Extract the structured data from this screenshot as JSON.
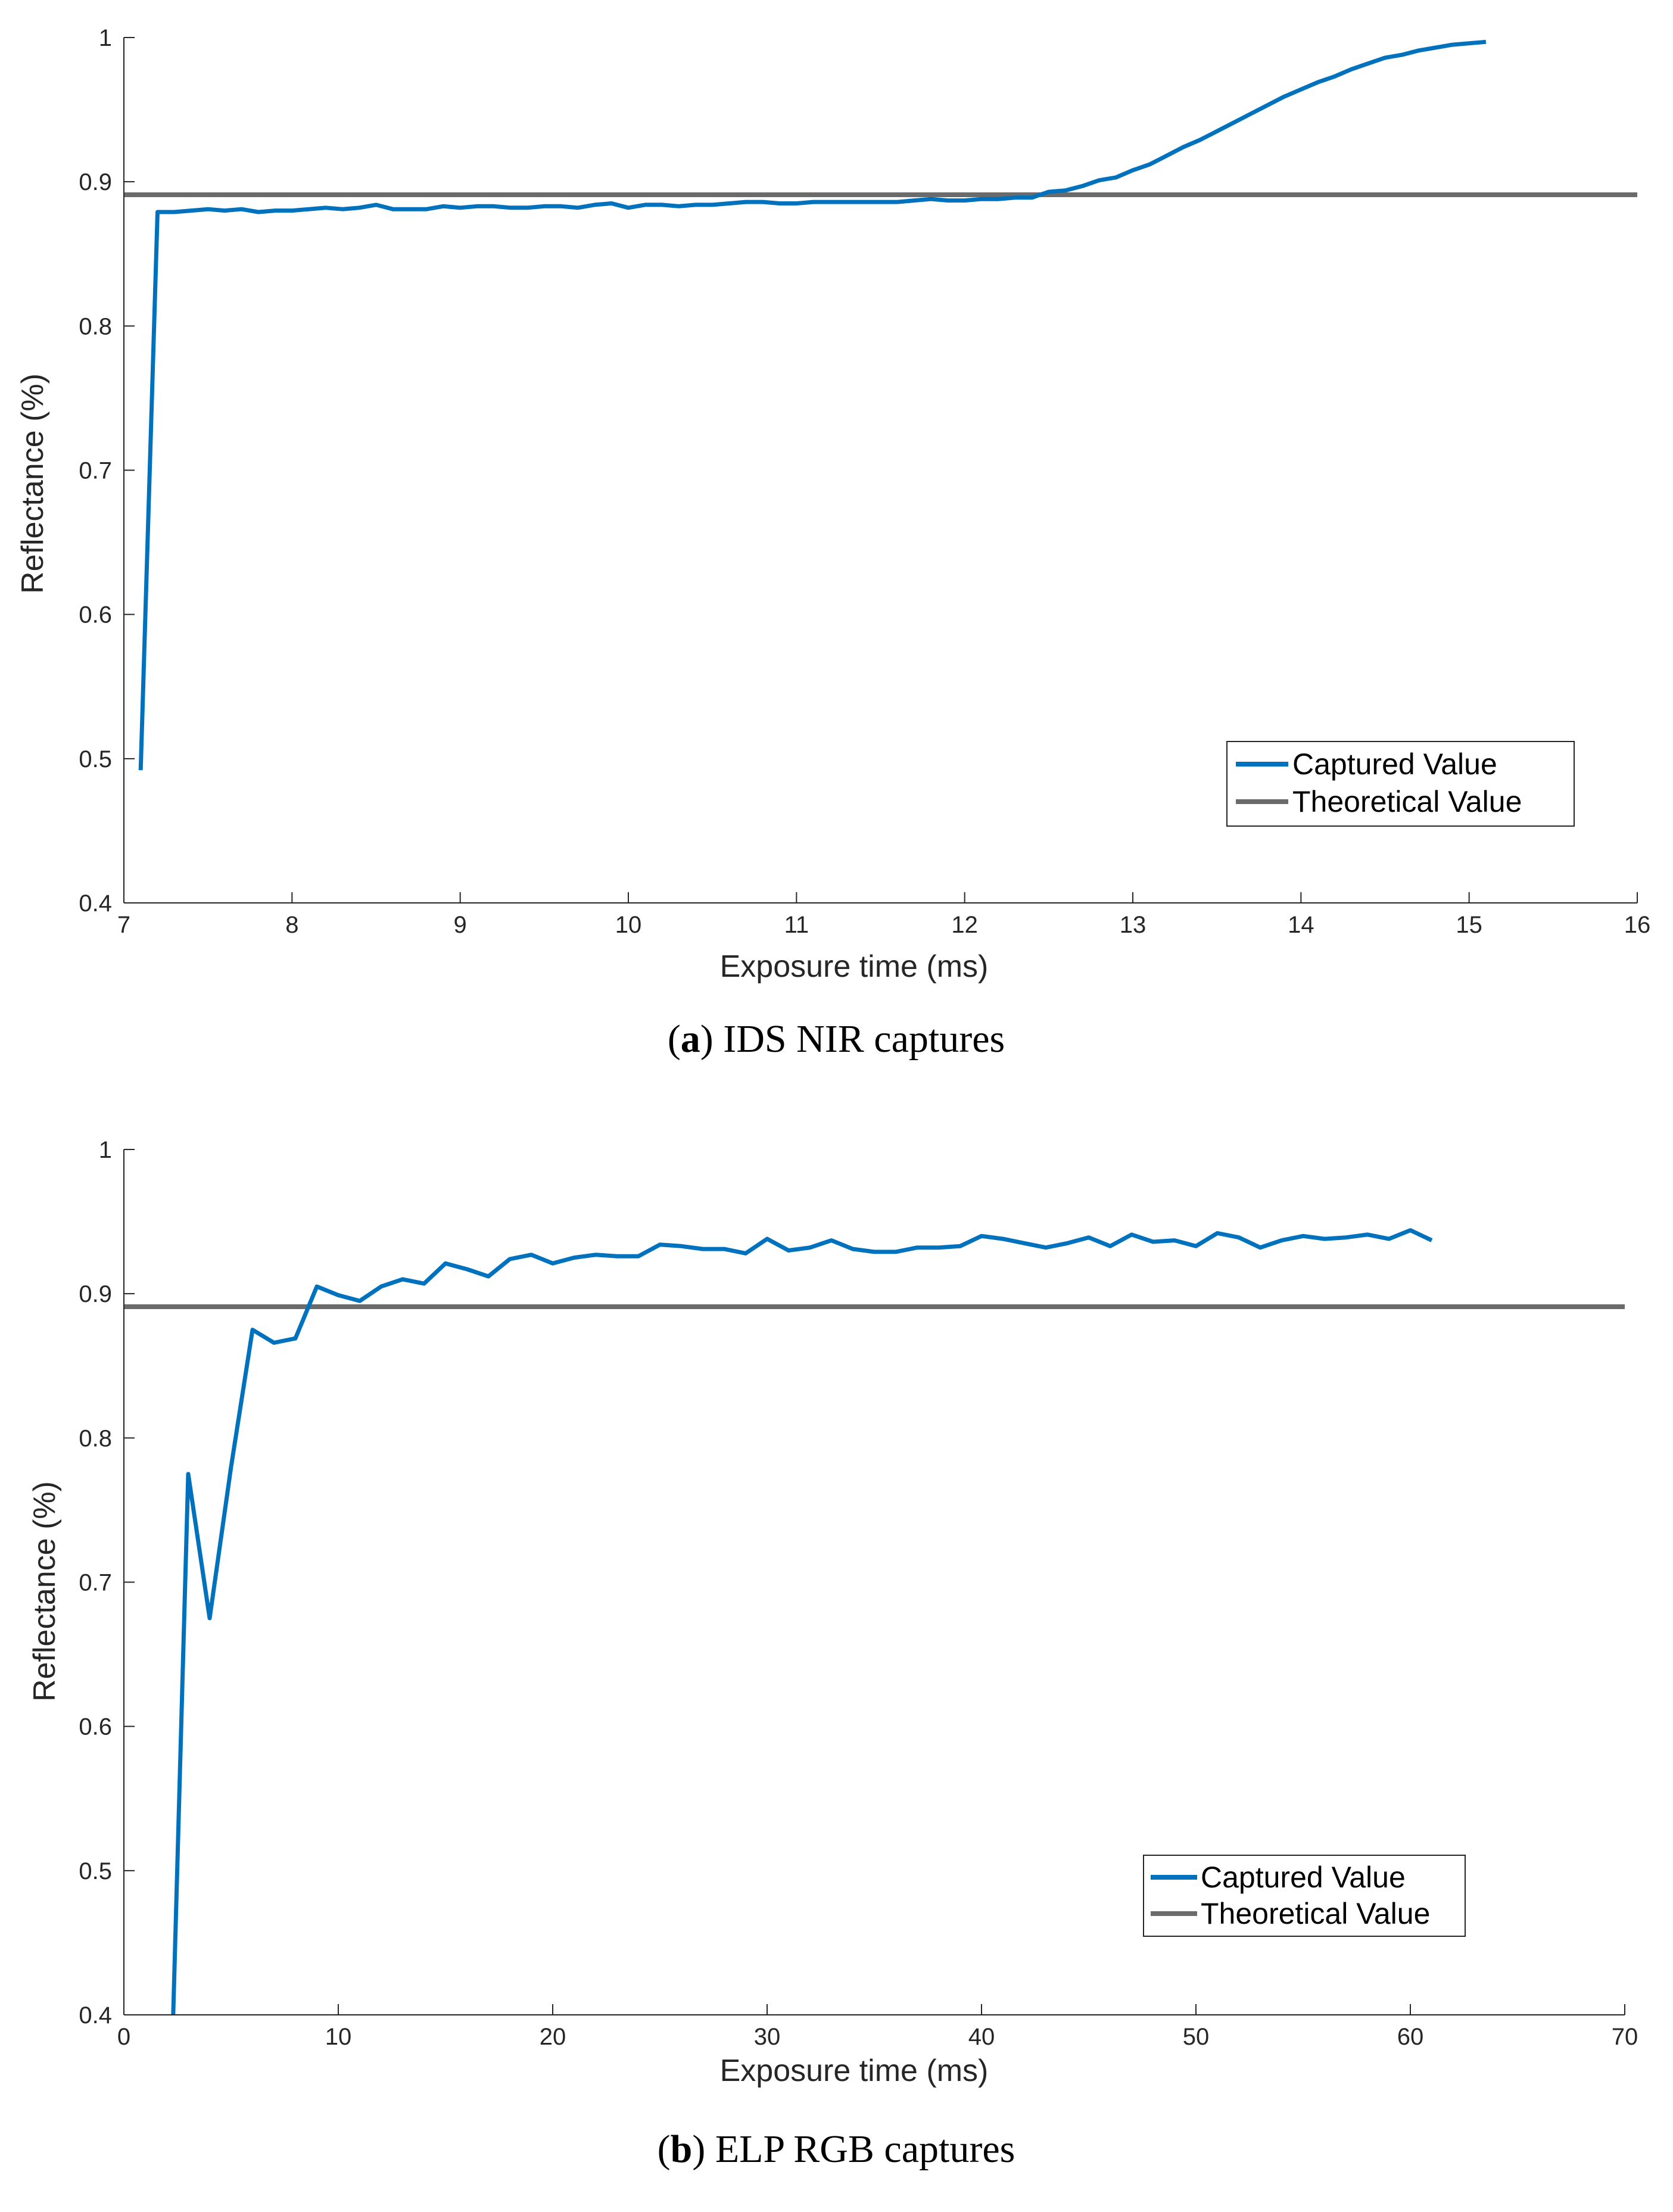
{
  "colors": {
    "captured": "#0072BD",
    "theoretical": "#6b6b6b",
    "axis": "#262626"
  },
  "chart_data": [
    {
      "type": "line",
      "caption_letter": "a",
      "caption_rest": ") IDS NIR captures",
      "xlabel": "Exposure time (ms)",
      "ylabel": "Reflectance (%)",
      "xlim": [
        7,
        16
      ],
      "ylim": [
        0.4,
        1
      ],
      "xticks": [
        7,
        8,
        9,
        10,
        11,
        12,
        13,
        14,
        15,
        16
      ],
      "yticks": [
        0.4,
        0.5,
        0.6,
        0.7,
        0.8,
        0.9,
        1
      ],
      "ytick_labels": [
        "0.4",
        "0.5",
        "0.6",
        "0.7",
        "0.8",
        "0.9",
        "1"
      ],
      "legend_position": "bottom-right",
      "series": [
        {
          "name": "Captured Value",
          "x": [
            7.1,
            7.2,
            7.3,
            7.4,
            7.5,
            7.6,
            7.7,
            7.8,
            7.9,
            8.0,
            8.1,
            8.2,
            8.3,
            8.4,
            8.5,
            8.6,
            8.7,
            8.8,
            8.9,
            9.0,
            9.1,
            9.2,
            9.3,
            9.4,
            9.5,
            9.6,
            9.7,
            9.8,
            9.9,
            10.0,
            10.1,
            10.2,
            10.3,
            10.4,
            10.5,
            10.6,
            10.7,
            10.8,
            10.9,
            11.0,
            11.1,
            11.2,
            11.3,
            11.4,
            11.5,
            11.6,
            11.7,
            11.8,
            11.9,
            12.0,
            12.1,
            12.2,
            12.3,
            12.4,
            12.5,
            12.6,
            12.7,
            12.8,
            12.9,
            13.0,
            13.1,
            13.2,
            13.3,
            13.4,
            13.5,
            13.6,
            13.7,
            13.8,
            13.9,
            14.0,
            14.1,
            14.2,
            14.3,
            14.4,
            14.5,
            14.6,
            14.7,
            14.8,
            14.9,
            15.0,
            15.1
          ],
          "y": [
            0.492,
            0.879,
            0.879,
            0.88,
            0.881,
            0.88,
            0.881,
            0.879,
            0.88,
            0.88,
            0.881,
            0.882,
            0.881,
            0.882,
            0.884,
            0.881,
            0.881,
            0.881,
            0.883,
            0.882,
            0.883,
            0.883,
            0.882,
            0.882,
            0.883,
            0.883,
            0.882,
            0.884,
            0.885,
            0.882,
            0.884,
            0.884,
            0.883,
            0.884,
            0.884,
            0.885,
            0.886,
            0.886,
            0.885,
            0.885,
            0.886,
            0.886,
            0.886,
            0.886,
            0.886,
            0.886,
            0.887,
            0.888,
            0.887,
            0.887,
            0.888,
            0.888,
            0.889,
            0.889,
            0.893,
            0.894,
            0.897,
            0.901,
            0.903,
            0.908,
            0.912,
            0.918,
            0.924,
            0.929,
            0.935,
            0.941,
            0.947,
            0.953,
            0.959,
            0.964,
            0.969,
            0.973,
            0.978,
            0.982,
            0.986,
            0.988,
            0.991,
            0.993,
            0.995,
            0.996,
            0.997
          ],
          "color": "#0072BD"
        },
        {
          "name": "Theoretical Value",
          "x": [
            7,
            16
          ],
          "y": [
            0.891,
            0.891
          ],
          "color": "#6b6b6b"
        }
      ]
    },
    {
      "type": "line",
      "caption_letter": "b",
      "caption_rest": ") ELP RGB captures",
      "xlabel": "Exposure time (ms)",
      "ylabel": "Reflectance (%)",
      "xlim": [
        0,
        70
      ],
      "ylim": [
        0.4,
        1
      ],
      "xticks": [
        0,
        10,
        20,
        30,
        40,
        50,
        60,
        70
      ],
      "yticks": [
        0.4,
        0.5,
        0.6,
        0.7,
        0.8,
        0.9,
        1
      ],
      "ytick_labels": [
        "0.4",
        "0.5",
        "0.6",
        "0.7",
        "0.8",
        "0.9",
        "1"
      ],
      "legend_position": "bottom-right",
      "series": [
        {
          "name": "Captured Value",
          "x": [
            2.3,
            3,
            4,
            5,
            6,
            7,
            8,
            9,
            10,
            11,
            12,
            13,
            14,
            15,
            16,
            17,
            18,
            19,
            20,
            21,
            22,
            23,
            24,
            25,
            26,
            27,
            28,
            29,
            30,
            31,
            32,
            33,
            34,
            35,
            36,
            37,
            38,
            39,
            40,
            41,
            42,
            43,
            44,
            45,
            46,
            47,
            48,
            49,
            50,
            51,
            52,
            53,
            54,
            55,
            56,
            57,
            58,
            59,
            60,
            61
          ],
          "y": [
            0.4,
            0.775,
            0.675,
            0.78,
            0.875,
            0.866,
            0.869,
            0.905,
            0.899,
            0.895,
            0.905,
            0.91,
            0.907,
            0.921,
            0.917,
            0.912,
            0.924,
            0.927,
            0.921,
            0.925,
            0.927,
            0.926,
            0.926,
            0.934,
            0.933,
            0.931,
            0.931,
            0.928,
            0.938,
            0.93,
            0.932,
            0.937,
            0.931,
            0.929,
            0.929,
            0.932,
            0.932,
            0.933,
            0.94,
            0.938,
            0.935,
            0.932,
            0.935,
            0.939,
            0.933,
            0.941,
            0.936,
            0.937,
            0.933,
            0.942,
            0.939,
            0.932,
            0.937,
            0.94,
            0.938,
            0.939,
            0.941,
            0.938,
            0.944,
            0.937
          ],
          "color": "#0072BD"
        },
        {
          "name": "Theoretical Value",
          "x": [
            0,
            70
          ],
          "y": [
            0.891,
            0.891
          ],
          "color": "#6b6b6b"
        }
      ]
    }
  ]
}
